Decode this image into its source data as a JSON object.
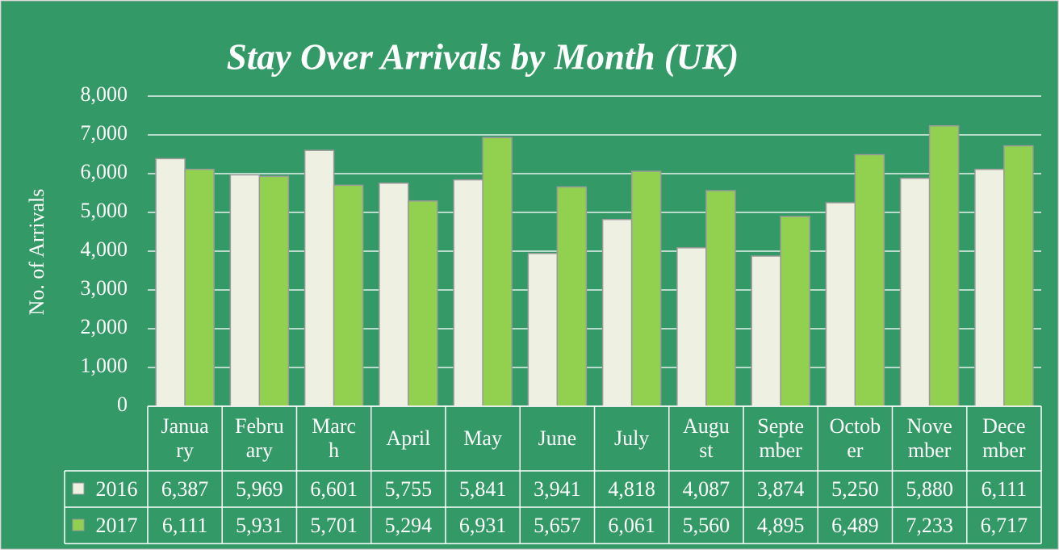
{
  "chart_data": {
    "type": "bar",
    "title": "Stay Over Arrivals by Month (UK)",
    "y_axis_label": "No. of Arrivals",
    "categories": [
      "January",
      "February",
      "March",
      "April",
      "May",
      "June",
      "July",
      "August",
      "September",
      "October",
      "November",
      "December"
    ],
    "series": [
      {
        "name": "2016",
        "color": "#eef0e2",
        "values": [
          6387,
          5969,
          6601,
          5755,
          5841,
          3941,
          4818,
          4087,
          3874,
          5250,
          5880,
          6111
        ],
        "value_labels": [
          "6,387",
          "5,969",
          "6,601",
          "5,755",
          "5,841",
          "3,941",
          "4,818",
          "4,087",
          "3,874",
          "5,250",
          "5,880",
          "6,111"
        ]
      },
      {
        "name": "2017",
        "color": "#92d050",
        "values": [
          6111,
          5931,
          5701,
          5294,
          6931,
          5657,
          6061,
          5560,
          4895,
          6489,
          7233,
          6717
        ],
        "value_labels": [
          "6,111",
          "5,931",
          "5,701",
          "5,294",
          "6,931",
          "5,657",
          "6,061",
          "5,560",
          "4,895",
          "6,489",
          "7,233",
          "6,717"
        ]
      }
    ],
    "ylim": [
      0,
      8000
    ],
    "yticks": [
      0,
      {
        "value": 1000,
        "label": "1,000"
      },
      {
        "value": 2000,
        "label": "2,000"
      },
      {
        "value": 3000,
        "label": "3,000"
      },
      {
        "value": 4000,
        "label": "4,000"
      },
      {
        "value": 5000,
        "label": "5,000"
      },
      {
        "value": 6000,
        "label": "6,000"
      },
      {
        "value": 7000,
        "label": "7,000"
      },
      {
        "value": 8000,
        "label": "8,000"
      }
    ],
    "grid": true
  }
}
